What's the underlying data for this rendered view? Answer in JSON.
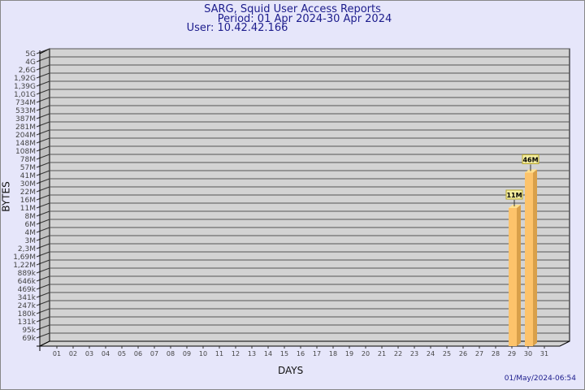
{
  "header": {
    "title": "SARG, Squid User Access Reports",
    "period": "Period: 01 Apr 2024-30 Apr 2024",
    "user": "User: 10.42.42.166"
  },
  "footer": {
    "timestamp": "01/May/2024-06:54"
  },
  "chart_data": {
    "type": "bar",
    "style": "3d",
    "xlabel": "DAYS",
    "ylabel": "BYTES",
    "y_scale": "log",
    "grid": true,
    "y_tick_labels": [
      "5G",
      "4G",
      "2,6G",
      "1,92G",
      "1,39G",
      "1,01G",
      "734M",
      "533M",
      "387M",
      "281M",
      "204M",
      "148M",
      "108M",
      "78M",
      "57M",
      "41M",
      "30M",
      "22M",
      "16M",
      "11M",
      "8M",
      "6M",
      "4M",
      "3M",
      "2,3M",
      "1,69M",
      "1,22M",
      "889k",
      "646k",
      "469k",
      "341k",
      "247k",
      "180k",
      "131k",
      "95k",
      "69k"
    ],
    "y_tick_values": [
      5000000000.0,
      4000000000.0,
      2600000000.0,
      1920000000.0,
      1390000000.0,
      1010000000.0,
      734000000.0,
      533000000.0,
      387000000.0,
      281000000.0,
      204000000.0,
      148000000.0,
      108000000.0,
      78000000.0,
      57000000.0,
      41000000.0,
      30000000.0,
      22000000.0,
      16000000.0,
      11000000.0,
      8000000.0,
      6000000.0,
      4000000.0,
      3000000.0,
      2300000.0,
      1690000.0,
      1220000.0,
      889000.0,
      646000.0,
      469000.0,
      341000.0,
      247000.0,
      180000.0,
      131000.0,
      95000.0,
      69000.0
    ],
    "categories": [
      "01",
      "02",
      "03",
      "04",
      "05",
      "06",
      "07",
      "08",
      "09",
      "10",
      "11",
      "12",
      "13",
      "14",
      "15",
      "16",
      "17",
      "18",
      "19",
      "20",
      "21",
      "22",
      "23",
      "24",
      "25",
      "26",
      "27",
      "28",
      "29",
      "30",
      "31"
    ],
    "values": [
      null,
      null,
      null,
      null,
      null,
      null,
      null,
      null,
      null,
      null,
      null,
      null,
      null,
      null,
      null,
      null,
      null,
      null,
      null,
      null,
      null,
      null,
      null,
      null,
      null,
      null,
      null,
      null,
      11000000,
      46000000,
      null
    ],
    "data_labels": {
      "29": "11M",
      "30": "46M"
    },
    "colors": {
      "bar_front": "#fdc36b",
      "bar_side": "#d9a04a",
      "bar_top": "#ffe08f",
      "wall": "#d3d3d3",
      "side_wall": "#c0c0c0",
      "label_bg": "#f5eea0",
      "label_border": "#b8a830"
    }
  }
}
